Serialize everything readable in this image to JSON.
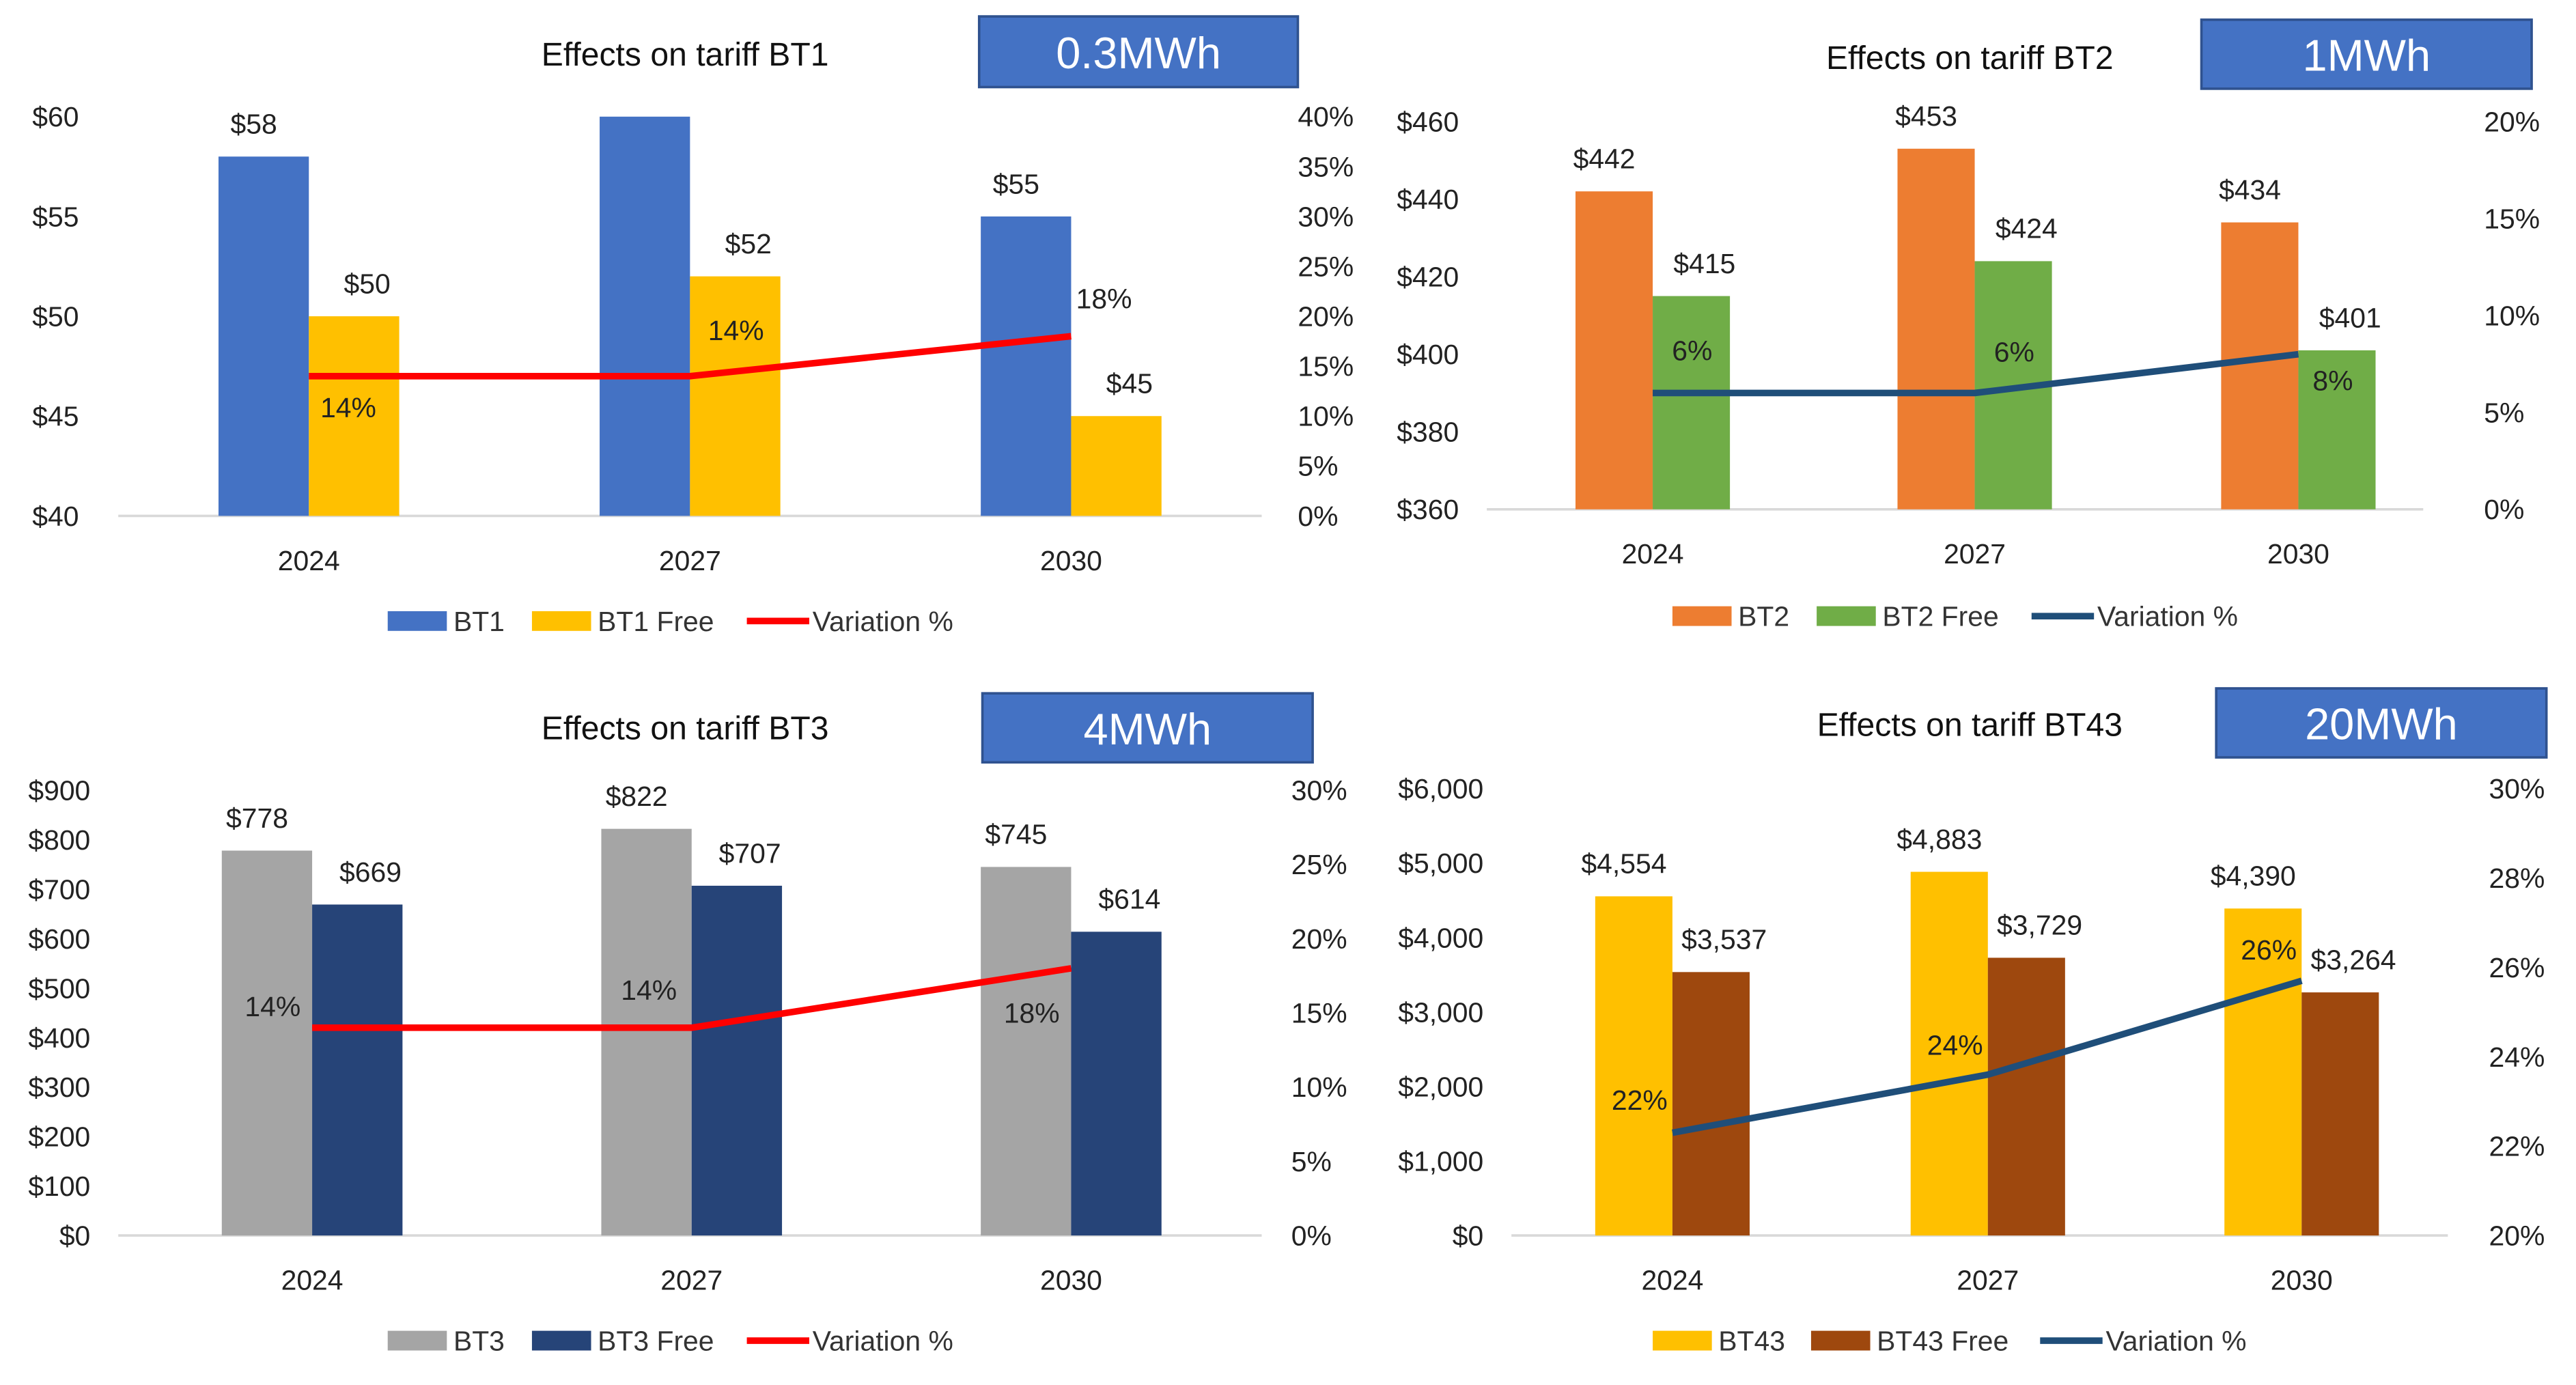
{
  "chart_data": [
    {
      "type": "bar",
      "title": "Effects on tariff BT1",
      "badge": "0.3MWh",
      "categories": [
        "2024",
        "2027",
        "2030"
      ],
      "yticks": [
        "$40",
        "$45",
        "$50",
        "$55",
        "$60"
      ],
      "ylim": [
        40,
        60
      ],
      "y2ticks": [
        "0%",
        "5%",
        "10%",
        "15%",
        "20%",
        "25%",
        "30%",
        "35%",
        "40%"
      ],
      "y2lim": [
        0,
        40
      ],
      "series": [
        {
          "name": "BT1",
          "kind": "bar",
          "color": "#4472C4",
          "values": [
            58,
            60,
            55
          ],
          "labels": [
            "$58",
            "",
            "$55"
          ]
        },
        {
          "name": "BT1 Free",
          "kind": "bar",
          "color": "#FFC000",
          "values": [
            50,
            52,
            45
          ],
          "labels": [
            "$50",
            "$52",
            "$45"
          ]
        },
        {
          "name": "Variation %",
          "kind": "line",
          "axis": "right",
          "color": "#FF0000",
          "values": [
            14,
            14,
            18
          ],
          "labels": [
            "14%",
            "14%",
            "18%"
          ]
        }
      ],
      "legend": "bottom"
    },
    {
      "type": "bar",
      "title": "Effects on tariff BT2",
      "badge": "1MWh",
      "categories": [
        "2024",
        "2027",
        "2030"
      ],
      "yticks": [
        "$360",
        "$380",
        "$400",
        "$420",
        "$440",
        "$460"
      ],
      "ylim": [
        360,
        460
      ],
      "y2ticks": [
        "0%",
        "5%",
        "10%",
        "15%",
        "20%"
      ],
      "y2lim": [
        0,
        20
      ],
      "series": [
        {
          "name": "BT2",
          "kind": "bar",
          "color": "#ED7D31",
          "values": [
            442,
            453,
            434
          ],
          "labels": [
            "$442",
            "$453",
            "$434"
          ]
        },
        {
          "name": "BT2 Free",
          "kind": "bar",
          "color": "#70AD47",
          "values": [
            415,
            424,
            401
          ],
          "labels": [
            "$415",
            "$424",
            "$401"
          ]
        },
        {
          "name": "Variation %",
          "kind": "line",
          "axis": "right",
          "color": "#1F4E79",
          "values": [
            6,
            6,
            8
          ],
          "labels": [
            "6%",
            "6%",
            "8%"
          ]
        }
      ],
      "legend": "bottom"
    },
    {
      "type": "bar",
      "title": "Effects on tariff BT3",
      "badge": "4MWh",
      "categories": [
        "2024",
        "2027",
        "2030"
      ],
      "yticks": [
        "$0",
        "$100",
        "$200",
        "$300",
        "$400",
        "$500",
        "$600",
        "$700",
        "$800",
        "$900"
      ],
      "ylim": [
        0,
        900
      ],
      "y2ticks": [
        "0%",
        "5%",
        "10%",
        "15%",
        "20%",
        "25%",
        "30%"
      ],
      "y2lim": [
        0,
        30
      ],
      "series": [
        {
          "name": "BT3",
          "kind": "bar",
          "color": "#A5A5A5",
          "values": [
            778,
            822,
            745
          ],
          "labels": [
            "$778",
            "$822",
            "$745"
          ]
        },
        {
          "name": "BT3 Free",
          "kind": "bar",
          "color": "#264478",
          "values": [
            669,
            707,
            614
          ],
          "labels": [
            "$669",
            "$707",
            "$614"
          ]
        },
        {
          "name": "Variation %",
          "kind": "line",
          "axis": "right",
          "color": "#FF0000",
          "values": [
            14,
            14,
            18
          ],
          "labels": [
            "14%",
            "14%",
            "18%"
          ]
        }
      ],
      "legend": "bottom"
    },
    {
      "type": "bar",
      "title": "Effects on tariff BT43",
      "badge": "20MWh",
      "categories": [
        "2024",
        "2027",
        "2030"
      ],
      "yticks": [
        "$0",
        "$1,000",
        "$2,000",
        "$3,000",
        "$4,000",
        "$5,000",
        "$6,000"
      ],
      "ylim": [
        0,
        6000
      ],
      "y2ticks": [
        "20%",
        "22%",
        "24%",
        "26%",
        "28%",
        "30%"
      ],
      "y2lim": [
        20,
        30
      ],
      "series": [
        {
          "name": "BT43",
          "kind": "bar",
          "color": "#FFC000",
          "values": [
            4554,
            4883,
            4390
          ],
          "labels": [
            "$4,554",
            "$4,883",
            "$4,390"
          ]
        },
        {
          "name": "BT43 Free",
          "kind": "bar",
          "color": "#9E480E",
          "values": [
            3537,
            3729,
            3264
          ],
          "labels": [
            "$3,537",
            "$3,729",
            "$3,264"
          ]
        },
        {
          "name": "Variation %",
          "kind": "line",
          "axis": "right",
          "color": "#1F4E79",
          "values": [
            22.3,
            23.6,
            25.7
          ],
          "labels": [
            "22%",
            "24%",
            "26%"
          ]
        }
      ],
      "legend": "bottom"
    }
  ]
}
